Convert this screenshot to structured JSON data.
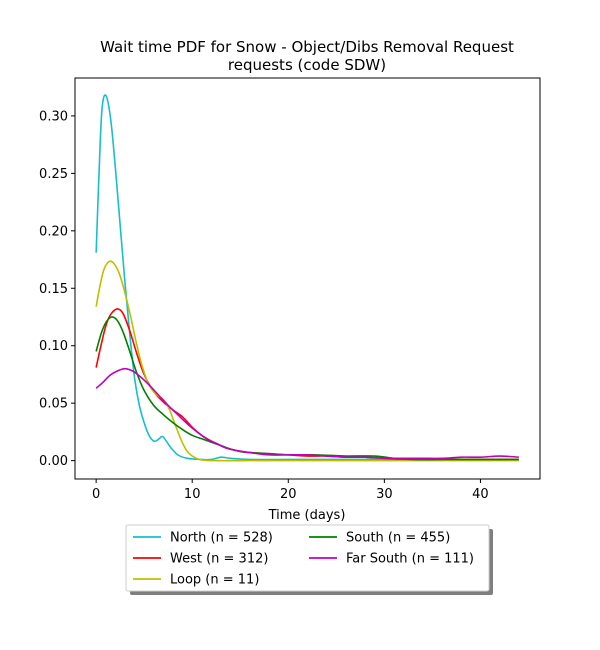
{
  "chart_data": {
    "type": "line",
    "title_lines": [
      "Wait time PDF for Snow - Object/Dibs Removal Request",
      "requests (code SDW)"
    ],
    "xlabel": "Time (days)",
    "ylabel": "",
    "xlim": [
      -2.2,
      46.2
    ],
    "ylim": [
      -0.016,
      0.333
    ],
    "xticks": [
      0,
      10,
      20,
      30,
      40
    ],
    "yticks": [
      0.0,
      0.05,
      0.1,
      0.15,
      0.2,
      0.25,
      0.3
    ],
    "ytick_labels": [
      "0.00",
      "0.05",
      "0.10",
      "0.15",
      "0.20",
      "0.25",
      "0.30"
    ],
    "grid": false,
    "legend_placement": "below plot, two columns",
    "series": [
      {
        "name": "North (n = 528)",
        "color": "#17becf",
        "points": [
          [
            0,
            0.181
          ],
          [
            0.3,
            0.25
          ],
          [
            0.6,
            0.305
          ],
          [
            1.0,
            0.318
          ],
          [
            1.5,
            0.298
          ],
          [
            2.0,
            0.255
          ],
          [
            2.5,
            0.205
          ],
          [
            3.0,
            0.155
          ],
          [
            3.5,
            0.11
          ],
          [
            4.0,
            0.072
          ],
          [
            4.5,
            0.048
          ],
          [
            5.0,
            0.033
          ],
          [
            5.5,
            0.022
          ],
          [
            6.0,
            0.017
          ],
          [
            6.4,
            0.018
          ],
          [
            6.9,
            0.021
          ],
          [
            7.3,
            0.017
          ],
          [
            7.8,
            0.011
          ],
          [
            8.5,
            0.005
          ],
          [
            9.5,
            0.002
          ],
          [
            11,
            0.001
          ],
          [
            12,
            0.001
          ],
          [
            13,
            0.003
          ],
          [
            14,
            0.002
          ],
          [
            16,
            0.001
          ],
          [
            20,
            0.001
          ],
          [
            25,
            0.001
          ],
          [
            30,
            0.001
          ],
          [
            35,
            0.001
          ],
          [
            40,
            0.001
          ],
          [
            44,
            0.001
          ]
        ]
      },
      {
        "name": "West (n = 312)",
        "color": "#ff0000",
        "points": [
          [
            0,
            0.081
          ],
          [
            0.5,
            0.1
          ],
          [
            1.0,
            0.117
          ],
          [
            1.5,
            0.127
          ],
          [
            2.2,
            0.132
          ],
          [
            2.8,
            0.128
          ],
          [
            3.5,
            0.113
          ],
          [
            4.2,
            0.094
          ],
          [
            5,
            0.075
          ],
          [
            6,
            0.06
          ],
          [
            7,
            0.051
          ],
          [
            8,
            0.044
          ],
          [
            9,
            0.038
          ],
          [
            10,
            0.029
          ],
          [
            11,
            0.022
          ],
          [
            12,
            0.017
          ],
          [
            13,
            0.013
          ],
          [
            14,
            0.01
          ],
          [
            15,
            0.008
          ],
          [
            16,
            0.007
          ],
          [
            18,
            0.006
          ],
          [
            20,
            0.005
          ],
          [
            22,
            0.004
          ],
          [
            24,
            0.004
          ],
          [
            26,
            0.003
          ],
          [
            28,
            0.003
          ],
          [
            30,
            0.002
          ],
          [
            32,
            0.001
          ],
          [
            35,
            0.001
          ],
          [
            38,
            0.001
          ],
          [
            40,
            0.001
          ],
          [
            44,
            0.001
          ]
        ]
      },
      {
        "name": "Loop (n = 11)",
        "color": "#bfbf00",
        "points": [
          [
            0,
            0.134
          ],
          [
            0.4,
            0.152
          ],
          [
            0.8,
            0.166
          ],
          [
            1.3,
            0.173
          ],
          [
            1.8,
            0.172
          ],
          [
            2.4,
            0.163
          ],
          [
            3.0,
            0.146
          ],
          [
            3.6,
            0.125
          ],
          [
            4.2,
            0.102
          ],
          [
            4.8,
            0.082
          ],
          [
            5.5,
            0.066
          ],
          [
            6.2,
            0.058
          ],
          [
            7.0,
            0.053
          ],
          [
            7.6,
            0.045
          ],
          [
            8.2,
            0.032
          ],
          [
            8.8,
            0.019
          ],
          [
            9.4,
            0.009
          ],
          [
            10,
            0.004
          ],
          [
            10.8,
            0.001
          ],
          [
            12,
            0.0
          ],
          [
            16,
            0.0
          ],
          [
            20,
            0.0
          ],
          [
            25,
            0.0
          ],
          [
            30,
            0.0
          ],
          [
            35,
            0.0
          ],
          [
            40,
            0.0
          ],
          [
            44,
            0.0
          ]
        ]
      },
      {
        "name": "South (n = 455)",
        "color": "#008000",
        "points": [
          [
            0,
            0.095
          ],
          [
            0.5,
            0.11
          ],
          [
            1.0,
            0.12
          ],
          [
            1.6,
            0.125
          ],
          [
            2.2,
            0.122
          ],
          [
            2.8,
            0.112
          ],
          [
            3.5,
            0.095
          ],
          [
            4.2,
            0.077
          ],
          [
            5,
            0.061
          ],
          [
            6,
            0.048
          ],
          [
            7,
            0.04
          ],
          [
            8,
            0.033
          ],
          [
            9,
            0.027
          ],
          [
            10,
            0.022
          ],
          [
            11,
            0.019
          ],
          [
            12,
            0.016
          ],
          [
            13,
            0.013
          ],
          [
            14,
            0.01
          ],
          [
            15,
            0.008
          ],
          [
            16,
            0.007
          ],
          [
            18,
            0.006
          ],
          [
            20,
            0.005
          ],
          [
            23,
            0.005
          ],
          [
            26,
            0.004
          ],
          [
            29,
            0.004
          ],
          [
            31,
            0.002
          ],
          [
            33,
            0.001
          ],
          [
            36,
            0.001
          ],
          [
            40,
            0.001
          ],
          [
            44,
            0.001
          ]
        ]
      },
      {
        "name": "Far South (n = 111)",
        "color": "#bf00bf",
        "points": [
          [
            0,
            0.063
          ],
          [
            0.7,
            0.068
          ],
          [
            1.4,
            0.074
          ],
          [
            2.2,
            0.078
          ],
          [
            3.0,
            0.08
          ],
          [
            3.8,
            0.078
          ],
          [
            4.6,
            0.073
          ],
          [
            5.5,
            0.066
          ],
          [
            6.5,
            0.057
          ],
          [
            7.5,
            0.048
          ],
          [
            8.5,
            0.04
          ],
          [
            9.5,
            0.032
          ],
          [
            10.5,
            0.025
          ],
          [
            11.5,
            0.019
          ],
          [
            12.5,
            0.015
          ],
          [
            13.5,
            0.011
          ],
          [
            14.5,
            0.009
          ],
          [
            16,
            0.007
          ],
          [
            18,
            0.005
          ],
          [
            20,
            0.005
          ],
          [
            22,
            0.005
          ],
          [
            24,
            0.004
          ],
          [
            26,
            0.003
          ],
          [
            28,
            0.003
          ],
          [
            30,
            0.002
          ],
          [
            32,
            0.002
          ],
          [
            34,
            0.002
          ],
          [
            36,
            0.002
          ],
          [
            38,
            0.003
          ],
          [
            40,
            0.003
          ],
          [
            42,
            0.004
          ],
          [
            44,
            0.003
          ]
        ]
      }
    ]
  }
}
